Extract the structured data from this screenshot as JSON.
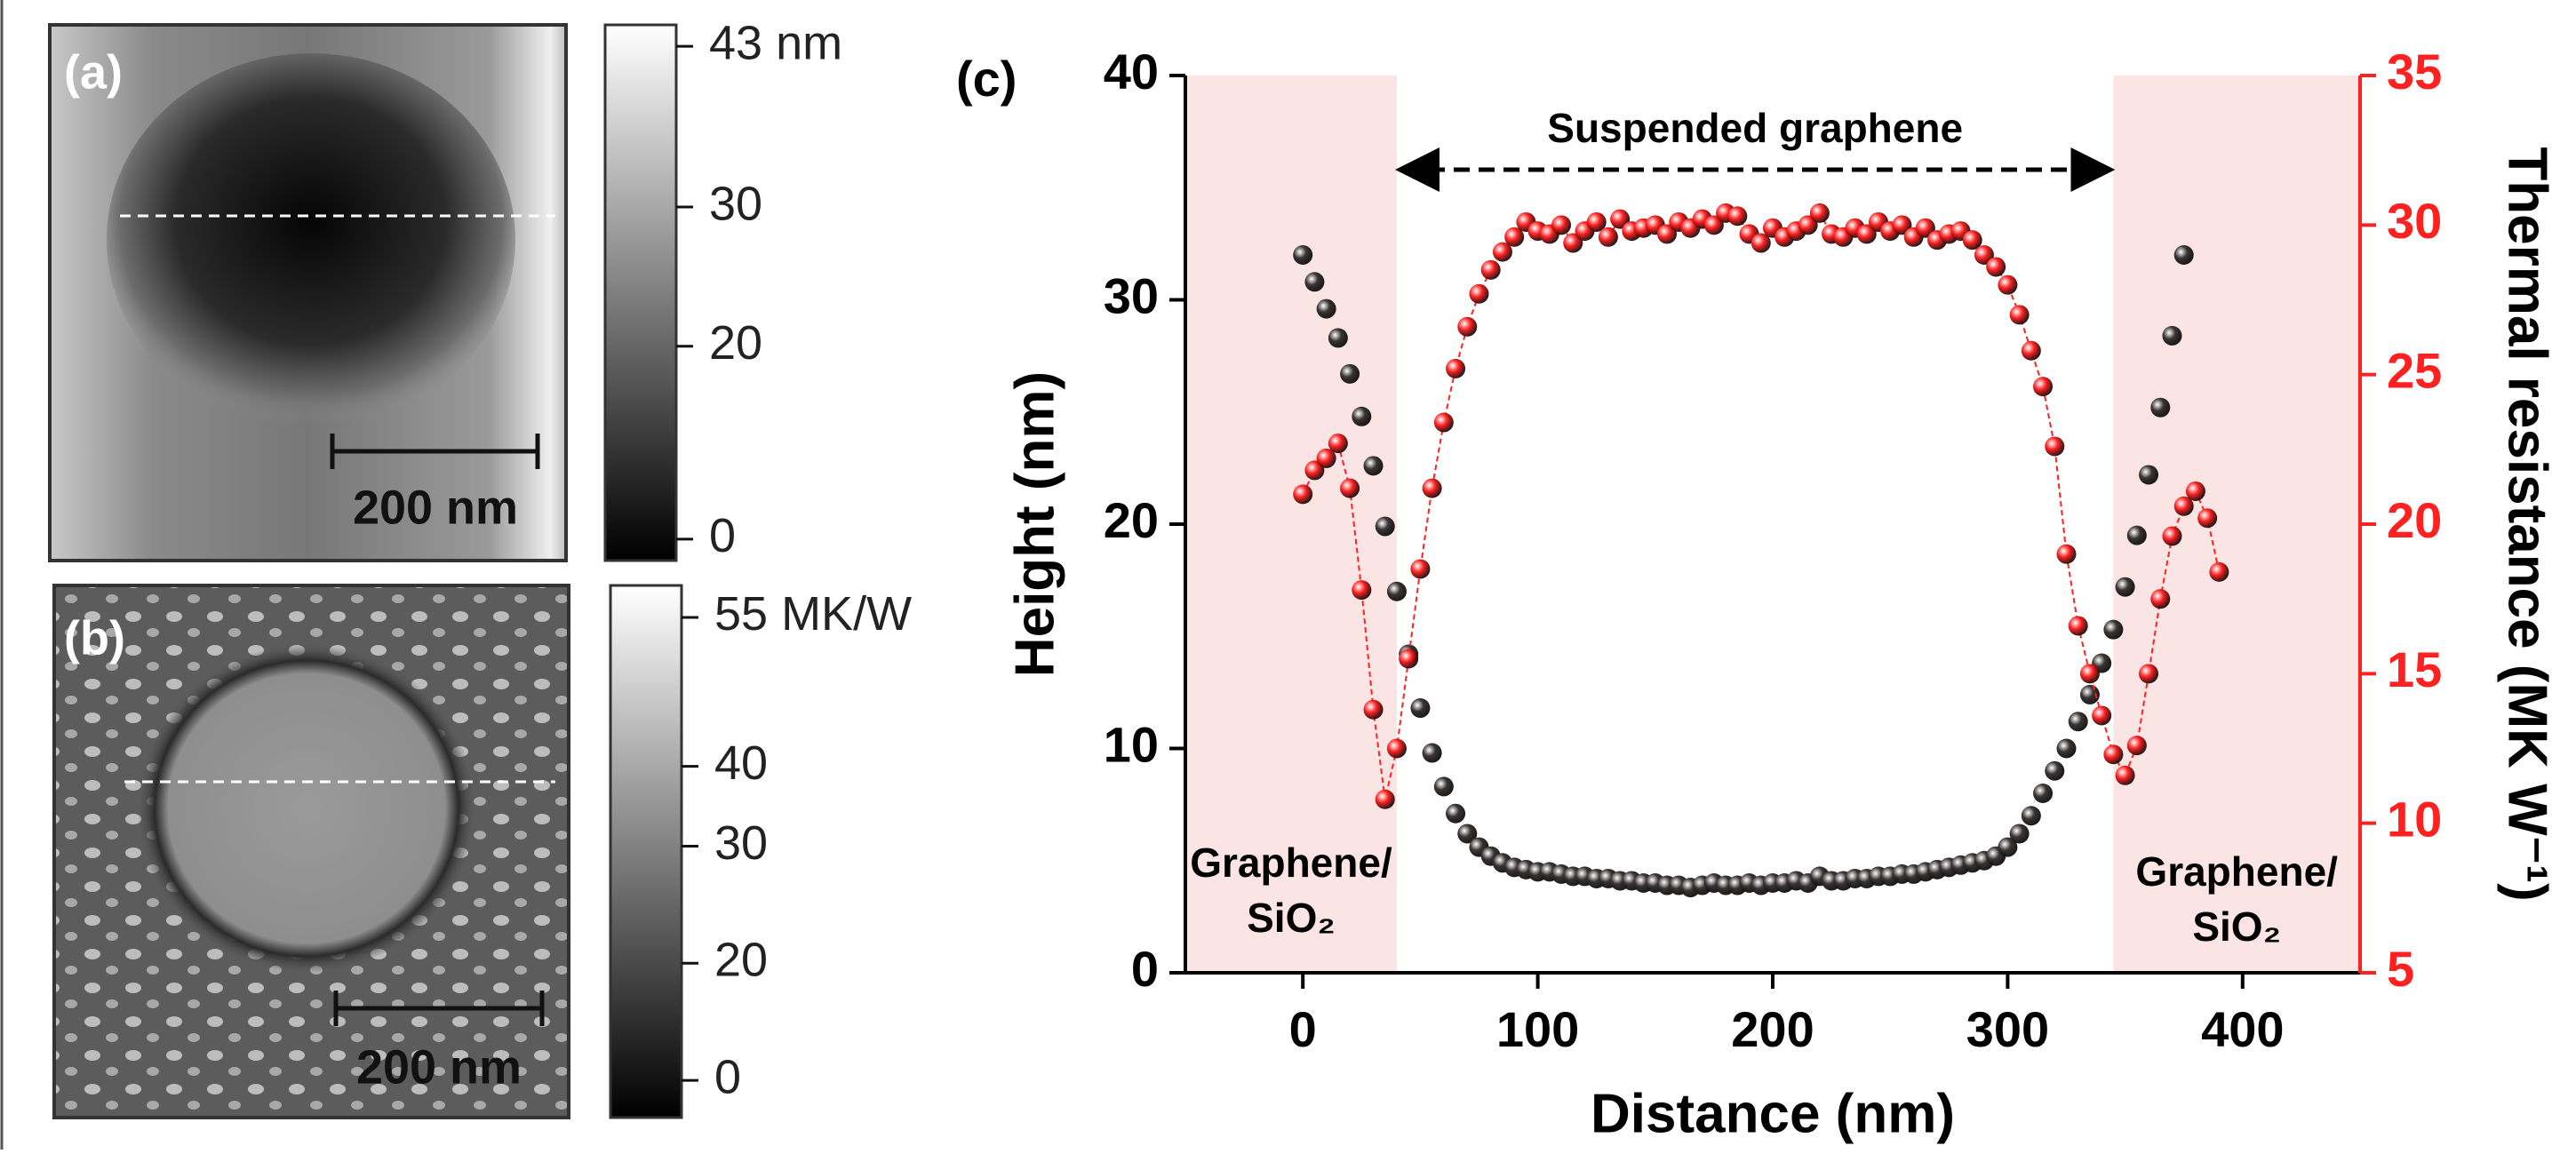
{
  "panels": [
    {
      "label": "(a)",
      "scale_bar": "200 nm",
      "colorbar_labels": [
        "43 nm",
        "30",
        "20",
        "0"
      ]
    },
    {
      "label": "(b)",
      "scale_bar": "200 nm",
      "colorbar_labels": [
        "55 MK/W",
        "40",
        "30",
        "20",
        "0"
      ]
    }
  ],
  "chart_data": {
    "type": "scatter",
    "panel_label": "(c)",
    "xlabel": "Distance (nm)",
    "ylabel": "Height (nm)",
    "y2label": "Thermal resistance (MK W⁻¹)",
    "xlim": [
      -50,
      450
    ],
    "xticks": [
      0,
      100,
      200,
      300,
      400
    ],
    "ylim": [
      0,
      40
    ],
    "yticks": [
      0,
      10,
      20,
      30,
      40
    ],
    "y2lim": [
      5,
      35
    ],
    "y2ticks": [
      5,
      10,
      15,
      20,
      25,
      30,
      35
    ],
    "shaded_spans": [
      [
        -50,
        40
      ],
      [
        345,
        450
      ]
    ],
    "shade_color": "#fbe4e4",
    "annotations": {
      "suspended": "Suspended graphene",
      "left_region": [
        "Graphene/",
        "SiO₂"
      ],
      "right_region": [
        "Graphene/",
        "SiO₂"
      ]
    },
    "series": [
      {
        "color": "#3a3434",
        "axis": "y",
        "connect": false,
        "x": [
          0,
          5,
          10,
          15,
          20,
          25,
          30,
          35,
          40,
          45,
          50,
          55,
          60,
          65,
          70,
          75,
          80,
          85,
          90,
          95,
          100,
          105,
          110,
          115,
          120,
          125,
          130,
          135,
          140,
          145,
          150,
          155,
          160,
          165,
          170,
          175,
          180,
          185,
          190,
          195,
          200,
          205,
          210,
          215,
          220,
          225,
          230,
          235,
          240,
          245,
          250,
          255,
          260,
          265,
          270,
          275,
          280,
          285,
          290,
          295,
          300,
          305,
          310,
          315,
          320,
          325,
          330,
          335,
          340,
          345,
          350,
          355,
          360,
          365,
          370,
          375
        ],
        "values": [
          32,
          30.8,
          29.6,
          28.3,
          26.7,
          24.8,
          22.6,
          19.9,
          17.0,
          14.2,
          11.8,
          9.8,
          8.3,
          7.1,
          6.2,
          5.6,
          5.2,
          4.9,
          4.7,
          4.6,
          4.5,
          4.5,
          4.4,
          4.3,
          4.3,
          4.2,
          4.2,
          4.1,
          4.1,
          4.0,
          4.0,
          3.9,
          3.9,
          3.8,
          3.9,
          4.0,
          3.9,
          3.9,
          4.0,
          3.9,
          4.0,
          4.0,
          4.1,
          4.0,
          4.3,
          4.1,
          4.1,
          4.2,
          4.2,
          4.3,
          4.3,
          4.4,
          4.4,
          4.5,
          4.6,
          4.7,
          4.8,
          4.9,
          5.0,
          5.2,
          5.6,
          6.2,
          7.0,
          8.0,
          9.0,
          10.0,
          11.2,
          12.4,
          13.8,
          15.3,
          17.2,
          19.5,
          22.2,
          25.2,
          28.4,
          32.0
        ]
      },
      {
        "color": "#ff2020",
        "axis": "y2",
        "connect": true,
        "x": [
          0,
          5,
          10,
          15,
          20,
          25,
          30,
          35,
          40,
          45,
          50,
          55,
          60,
          65,
          70,
          75,
          80,
          85,
          90,
          95,
          100,
          105,
          110,
          115,
          120,
          125,
          130,
          135,
          140,
          145,
          150,
          155,
          160,
          165,
          170,
          175,
          180,
          185,
          190,
          195,
          200,
          205,
          210,
          215,
          220,
          225,
          230,
          235,
          240,
          245,
          250,
          255,
          260,
          265,
          270,
          275,
          280,
          285,
          290,
          295,
          300,
          305,
          310,
          315,
          320,
          325,
          330,
          335,
          340,
          345,
          350,
          355,
          360,
          365,
          370,
          375,
          380,
          385,
          390
        ],
        "values": [
          21,
          21.8,
          22.2,
          22.7,
          21.2,
          17.8,
          13.8,
          10.8,
          12.5,
          15.5,
          18.5,
          21.2,
          23.4,
          25.2,
          26.6,
          27.7,
          28.5,
          29.1,
          29.6,
          30.1,
          29.8,
          29.7,
          30.0,
          29.4,
          29.8,
          30.1,
          29.6,
          30.2,
          29.8,
          29.9,
          30.0,
          29.7,
          30.1,
          29.9,
          30.2,
          30.0,
          30.4,
          30.3,
          29.7,
          29.4,
          29.9,
          29.6,
          29.8,
          30.0,
          30.4,
          29.7,
          29.6,
          29.9,
          29.7,
          30.1,
          29.8,
          30.0,
          29.6,
          29.9,
          29.5,
          29.7,
          29.8,
          29.5,
          29.0,
          28.6,
          28.0,
          27.0,
          25.8,
          24.6,
          22.6,
          19.0,
          16.6,
          15.0,
          13.6,
          12.3,
          11.6,
          12.6,
          15.0,
          17.5,
          19.6,
          20.6,
          21.1,
          20.2,
          18.4
        ]
      }
    ]
  }
}
